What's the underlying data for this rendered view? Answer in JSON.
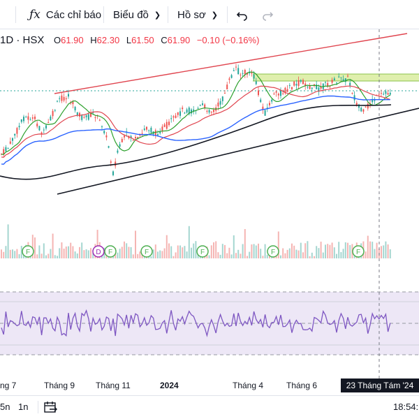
{
  "toolbar": {
    "indicators_label": "Các chỉ báo",
    "chart_type_label": "Biểu đồ",
    "profile_label": "Hồ sơ"
  },
  "legend": {
    "symbol": "1D · HSX",
    "open_key": "O",
    "open": "61.90",
    "high_key": "H",
    "high": "62.30",
    "low_key": "L",
    "low": "61.50",
    "close_key": "C",
    "close": "61.90",
    "change": "−0.10 (−0.16%)"
  },
  "time_axis": {
    "labels": [
      "ng 7",
      "Tháng 9",
      "Tháng 11",
      "2024",
      "Tháng 4",
      "Tháng 6"
    ],
    "crosshair_date": "23 Tháng Tám '24"
  },
  "events": [
    {
      "type": "F"
    },
    {
      "type": "D"
    },
    {
      "type": "F"
    },
    {
      "type": "F"
    },
    {
      "type": "F"
    },
    {
      "type": "F"
    },
    {
      "type": "F"
    }
  ],
  "bottom": {
    "range_5n": "5n",
    "range_1n": "1n",
    "time": "18:54:"
  },
  "colors": {
    "up": "#26a69a",
    "down": "#ef5350",
    "ma_green": "#2ca02c",
    "ma_red": "#e0454f",
    "ma_blue": "#2962ff",
    "ma_black": "#131722",
    "resistance_zone": "#c8e08a",
    "rsi_line": "#7e57c2"
  },
  "icons": [
    "fx-icon",
    "undo-icon",
    "redo-icon",
    "calendar-icon"
  ]
}
